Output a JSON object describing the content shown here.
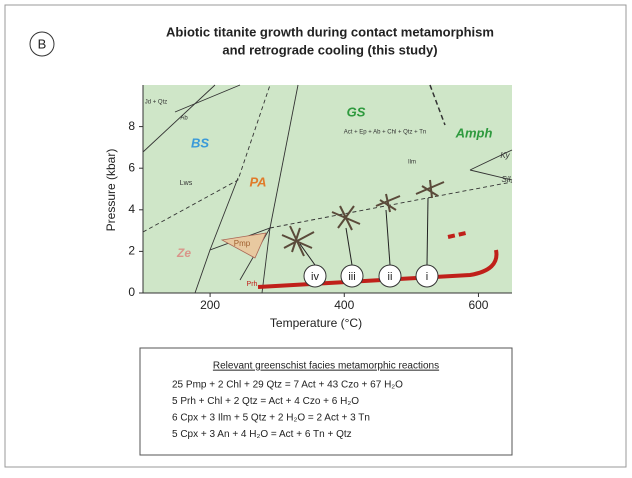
{
  "panel_label": "B",
  "title": [
    "Abiotic titanite growth during contact metamorphism",
    "and retrograde cooling (this study)"
  ],
  "axes": {
    "x_label": "Temperature (°C)",
    "y_label": "Pressure (kbar)",
    "xlim": [
      100,
      650
    ],
    "ylim": [
      0,
      10
    ],
    "xticks": [
      200,
      400,
      600
    ],
    "yticks": [
      0,
      2,
      4,
      6,
      8
    ]
  },
  "field_labels": [
    "BS",
    "PA",
    "GS",
    "Amph",
    "Ze",
    "Pmp",
    "Lws",
    "Prh",
    "Jd + Qtz",
    "Ab",
    "Act + Ep + Ab + Chl + Qtz + Tn",
    "Ilm",
    "Ky",
    "Sil"
  ],
  "stages": [
    "iv",
    "iii",
    "ii",
    "i"
  ],
  "reactions": {
    "title": "Relevant greenschist facies metamorphic reactions",
    "lines": [
      "25 Pmp + 2 Chl + 29 Qtz = 7 Act + 43 Czo + 67 H₂O",
      "5 Prh + Chl + 2 Qtz = Act + 4 Czo + 6 H₂O",
      "6 Cpx + 3 Ilm + 5 Qtz + 2 H₂O = 2 Act + 3 Tn",
      "5 Cpx + 3 An + 4 H₂O = Act + 6 Tn + Qtz"
    ]
  }
}
